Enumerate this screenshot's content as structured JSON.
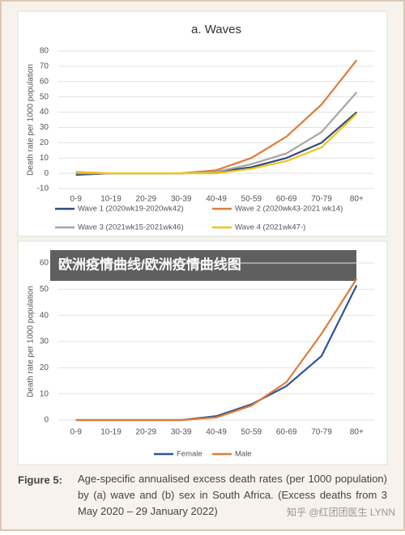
{
  "chart_data": [
    {
      "type": "line",
      "title": "a. Waves",
      "y_label": "Death rate per 1000 population",
      "categories": [
        "0-9",
        "10-19",
        "20-29",
        "30-39",
        "40-49",
        "50-59",
        "60-69",
        "70-79",
        "80+"
      ],
      "series": [
        {
          "name": "Wave 1 (2020wk19-2020wk42)",
          "color": "#2f4b7c",
          "values": [
            -1,
            0,
            0,
            0,
            1,
            4,
            10,
            20,
            40
          ]
        },
        {
          "name": "Wave 2 (2020wk43-2021 wk14)",
          "color": "#e07b39",
          "values": [
            0,
            0,
            0,
            0,
            2,
            10,
            24,
            45,
            74
          ]
        },
        {
          "name": "Wave 3 (2021wk15-2021wk46)",
          "color": "#a5a5a5",
          "values": [
            0,
            0,
            0,
            0,
            1,
            6,
            13,
            27,
            53
          ]
        },
        {
          "name": "Wave 4 (2021wk47-)",
          "color": "#f2c314",
          "values": [
            1,
            0,
            0,
            0,
            0,
            3,
            8,
            17,
            39
          ]
        }
      ],
      "ylim": [
        -10,
        80
      ],
      "yticks": [
        -10,
        0,
        10,
        20,
        30,
        40,
        50,
        60,
        70,
        80
      ],
      "grid": true,
      "legend": "bottom"
    },
    {
      "type": "line",
      "y_label": "Death rate per 1000 population",
      "categories": [
        "0-9",
        "10-19",
        "20-29",
        "30-39",
        "40-49",
        "50-59",
        "60-69",
        "70-79",
        "80+"
      ],
      "series": [
        {
          "name": "Female",
          "color": "#2f5597",
          "values": [
            0,
            0,
            0,
            0,
            1.5,
            6,
            13,
            24.5,
            51.5
          ]
        },
        {
          "name": "Male",
          "color": "#e07b39",
          "values": [
            0,
            0,
            0,
            0,
            1,
            5.5,
            14.5,
            33,
            54
          ]
        }
      ],
      "ylim": [
        0,
        60
      ],
      "yticks": [
        0,
        10,
        20,
        30,
        40,
        50,
        60
      ],
      "grid": true,
      "legend": "bottom"
    }
  ],
  "banner": "欧洲疫情曲线/欧洲疫情曲线图",
  "caption": {
    "label": "Figure 5:",
    "text": "Age-specific annualised excess death rates (per 1000 population) by (a) wave and (b) sex in South Africa. (Excess deaths from 3 May 2020 – 29 January 2022)"
  },
  "watermark": "知乎 @红团团医生 LYNN"
}
